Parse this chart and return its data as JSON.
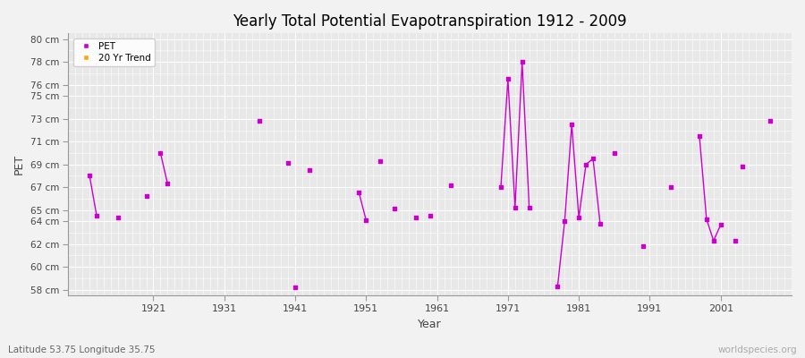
{
  "title": "Yearly Total Potential Evapotranspiration 1912 - 2009",
  "xlabel": "Year",
  "ylabel": "PET",
  "subtitle": "Latitude 53.75 Longitude 35.75",
  "watermark": "worldspecies.org",
  "ylim": [
    57.5,
    80.5
  ],
  "xlim": [
    1909,
    2011
  ],
  "yticks": [
    58,
    60,
    62,
    64,
    65,
    67,
    69,
    71,
    73,
    75,
    76,
    78,
    80
  ],
  "ytick_labels": [
    "58 cm",
    "60 cm",
    "62 cm",
    "64 cm",
    "65 cm",
    "67 cm",
    "69 cm",
    "71 cm",
    "73 cm",
    "75 cm",
    "76 cm",
    "78 cm",
    "80 cm"
  ],
  "xticks": [
    1921,
    1931,
    1941,
    1951,
    1961,
    1971,
    1981,
    1991,
    2001
  ],
  "pet_data": [
    [
      1912,
      68.0
    ],
    [
      1913,
      64.5
    ],
    [
      1916,
      64.3
    ],
    [
      1920,
      66.2
    ],
    [
      1922,
      70.0
    ],
    [
      1923,
      67.3
    ],
    [
      1936,
      72.8
    ],
    [
      1940,
      69.1
    ],
    [
      1941,
      58.2
    ],
    [
      1943,
      68.5
    ],
    [
      1950,
      66.5
    ],
    [
      1951,
      64.1
    ],
    [
      1953,
      69.3
    ],
    [
      1955,
      65.1
    ],
    [
      1958,
      64.3
    ],
    [
      1960,
      64.5
    ],
    [
      1963,
      67.2
    ],
    [
      1970,
      67.0
    ],
    [
      1971,
      76.5
    ],
    [
      1972,
      65.2
    ],
    [
      1973,
      78.0
    ],
    [
      1974,
      65.2
    ],
    [
      1978,
      58.3
    ],
    [
      1979,
      64.0
    ],
    [
      1980,
      72.5
    ],
    [
      1981,
      64.3
    ],
    [
      1982,
      69.0
    ],
    [
      1983,
      69.5
    ],
    [
      1984,
      63.8
    ],
    [
      1986,
      70.0
    ],
    [
      1990,
      61.8
    ],
    [
      1994,
      67.0
    ],
    [
      1998,
      71.5
    ],
    [
      1999,
      64.2
    ],
    [
      2000,
      62.3
    ],
    [
      2001,
      63.7
    ],
    [
      2003,
      62.3
    ],
    [
      2004,
      68.8
    ],
    [
      2008,
      72.8
    ]
  ],
  "pet_color": "#cc00cc",
  "trend_color": "#FFA500",
  "background_color": "#f2f2f2",
  "plot_bg_color": "#e8e8e8",
  "grid_color": "#ffffff",
  "connected_segments": [
    [
      1912,
      1913
    ],
    [
      1922,
      1923
    ],
    [
      1950,
      1951
    ],
    [
      1970,
      1971,
      1972,
      1973,
      1974
    ],
    [
      1978,
      1979,
      1980,
      1981,
      1982,
      1983,
      1984
    ],
    [
      1998,
      1999,
      2000,
      2001
    ]
  ]
}
